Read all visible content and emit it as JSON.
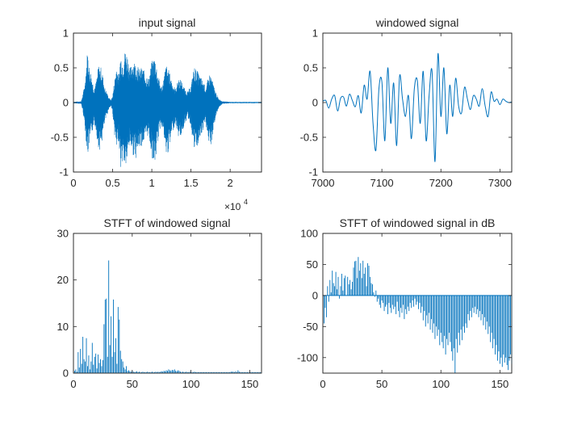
{
  "chart_data": [
    {
      "type": "line",
      "title": "input signal",
      "xlabel": "",
      "ylabel": "",
      "xlim": [
        0,
        24000
      ],
      "ylim": [
        -1,
        1
      ],
      "x_ticks": [
        0,
        5000,
        10000,
        15000,
        20000
      ],
      "x_tick_labels": [
        "0",
        "0.5",
        "1",
        "1.5",
        "2"
      ],
      "x_exponent_label": "×10",
      "x_exponent_power": "4",
      "y_ticks": [
        -1,
        -0.5,
        0,
        0.5,
        1
      ],
      "y_tick_labels": [
        "-1",
        "-0.5",
        "0",
        "0.5",
        "1"
      ],
      "color": "#0072BD",
      "envelope": {
        "x": [
          0,
          1000,
          1300,
          1500,
          1800,
          2000,
          2300,
          2600,
          2900,
          3200,
          3600,
          4000,
          4500,
          4800,
          5000,
          5200,
          5500,
          5800,
          6000,
          6300,
          6600,
          6900,
          7200,
          7600,
          8000,
          8400,
          8800,
          9200,
          9600,
          10000,
          10400,
          10800,
          11200,
          11500,
          11800,
          12200,
          12600,
          13000,
          13400,
          13800,
          14200,
          14600,
          15000,
          15400,
          15800,
          16200,
          16600,
          16900,
          17200,
          17400,
          17700,
          18000,
          18500,
          19000,
          20000,
          22000,
          24000
        ],
        "upper": [
          0.01,
          0.02,
          0.18,
          0.35,
          0.78,
          0.55,
          0.4,
          0.22,
          0.3,
          0.55,
          0.5,
          0.22,
          0.08,
          0.04,
          0.1,
          0.3,
          0.55,
          0.38,
          0.72,
          0.62,
          0.78,
          0.7,
          0.5,
          0.62,
          0.58,
          0.48,
          0.52,
          0.42,
          0.35,
          0.6,
          0.68,
          0.4,
          0.22,
          0.35,
          0.55,
          0.46,
          0.3,
          0.2,
          0.35,
          0.32,
          0.2,
          0.16,
          0.25,
          0.52,
          0.46,
          0.38,
          0.3,
          0.22,
          0.35,
          0.42,
          0.35,
          0.2,
          0.06,
          0.02,
          0.01,
          0.01,
          0.01
        ],
        "lower": [
          -0.01,
          -0.02,
          -0.2,
          -0.4,
          -0.8,
          -0.62,
          -0.5,
          -0.3,
          -0.4,
          -0.72,
          -0.6,
          -0.3,
          -0.1,
          -0.05,
          -0.15,
          -0.42,
          -0.72,
          -0.55,
          -0.95,
          -0.85,
          -0.96,
          -0.86,
          -0.6,
          -0.76,
          -0.8,
          -0.66,
          -0.62,
          -0.55,
          -0.46,
          -0.8,
          -0.9,
          -0.55,
          -0.3,
          -0.45,
          -0.8,
          -0.7,
          -0.44,
          -0.3,
          -0.5,
          -0.48,
          -0.3,
          -0.22,
          -0.35,
          -0.7,
          -0.66,
          -0.52,
          -0.4,
          -0.3,
          -0.6,
          -0.68,
          -0.55,
          -0.3,
          -0.08,
          -0.02,
          -0.01,
          -0.01,
          -0.01
        ]
      }
    },
    {
      "type": "line",
      "title": "windowed signal",
      "xlabel": "",
      "ylabel": "",
      "xlim": [
        7000,
        7320
      ],
      "ylim": [
        -1,
        1
      ],
      "x_ticks": [
        7000,
        7100,
        7200,
        7300
      ],
      "x_tick_labels": [
        "7000",
        "7100",
        "7200",
        "7300"
      ],
      "y_ticks": [
        -1,
        -0.5,
        0,
        0.5,
        1
      ],
      "y_tick_labels": [
        "-1",
        "-0.5",
        "0",
        "0.5",
        "1"
      ],
      "color": "#0072BD",
      "x": [
        7000,
        7005,
        7010,
        7015,
        7020,
        7025,
        7030,
        7035,
        7040,
        7045,
        7050,
        7055,
        7060,
        7065,
        7070,
        7075,
        7080,
        7085,
        7090,
        7095,
        7100,
        7105,
        7110,
        7115,
        7120,
        7125,
        7130,
        7135,
        7140,
        7145,
        7150,
        7155,
        7160,
        7165,
        7170,
        7175,
        7180,
        7185,
        7190,
        7195,
        7200,
        7205,
        7210,
        7215,
        7220,
        7225,
        7230,
        7235,
        7240,
        7245,
        7250,
        7255,
        7260,
        7265,
        7270,
        7275,
        7280,
        7285,
        7290,
        7295,
        7300,
        7305,
        7310,
        7315,
        7320
      ],
      "y": [
        0.02,
        0.03,
        -0.08,
        0.05,
        0.1,
        -0.12,
        0.06,
        0.08,
        -0.05,
        0.12,
        0.03,
        -0.06,
        0.1,
        -0.15,
        0.25,
        0.05,
        0.45,
        -0.3,
        -0.68,
        0.2,
        0.3,
        -0.55,
        0.5,
        -0.3,
        0.28,
        -0.62,
        0.38,
        0.05,
        -0.2,
        0.1,
        -0.52,
        0.2,
        0.32,
        -0.3,
        0.45,
        -0.55,
        0.1,
        0.45,
        -0.85,
        0.7,
        -0.2,
        0.5,
        -0.45,
        0.25,
        -0.2,
        0.35,
        -0.05,
        -0.15,
        0.22,
        0.05,
        -0.1,
        0.1,
        0.05,
        -0.05,
        0.2,
        -0.05,
        -0.2,
        0.15,
        0.02,
        0.05,
        -0.03,
        0.05,
        0.02,
        0.0,
        0.01
      ]
    },
    {
      "type": "bar",
      "title": "STFT of windowed signal",
      "xlabel": "",
      "ylabel": "",
      "xlim": [
        0,
        160
      ],
      "ylim": [
        0,
        30
      ],
      "x_ticks": [
        0,
        50,
        100,
        150
      ],
      "x_tick_labels": [
        "0",
        "50",
        "100",
        "150"
      ],
      "y_ticks": [
        0,
        10,
        20,
        30
      ],
      "y_tick_labels": [
        "0",
        "10",
        "20",
        "30"
      ],
      "color": "#0072BD",
      "values": [
        0.5,
        0.8,
        0.3,
        4.5,
        1.2,
        5.2,
        2.0,
        7.8,
        3.0,
        2.5,
        7.5,
        1.5,
        3.8,
        0.8,
        2.5,
        6.5,
        1.8,
        3.5,
        4.2,
        1.0,
        4.0,
        2.2,
        3.0,
        1.5,
        2.8,
        10.5,
        15.8,
        16.0,
        3.5,
        24.2,
        6.0,
        12.2,
        3.5,
        15.8,
        4.5,
        7.5,
        2.0,
        14.2,
        11.5,
        4.8,
        3.0,
        2.5,
        1.2,
        0.8,
        1.5,
        0.5,
        0.6,
        0.4,
        0.3,
        0.5,
        0.3,
        0.2,
        0.3,
        0.4,
        0.2,
        0.3,
        0.2,
        0.2,
        0.3,
        0.2,
        0.2,
        0.2,
        0.3,
        0.2,
        0.2,
        0.2,
        0.3,
        0.2,
        0.2,
        0.3,
        0.2,
        0.3,
        0.2,
        0.3,
        0.4,
        0.3,
        0.5,
        0.4,
        0.6,
        0.5,
        0.8,
        0.6,
        0.5,
        0.7,
        0.6,
        0.8,
        0.5,
        0.4,
        0.6,
        0.5,
        0.3,
        0.2,
        0.3,
        0.2,
        0.2,
        0.3,
        0.2,
        0.2,
        0.3,
        0.2,
        0.2,
        0.2,
        0.3,
        0.2,
        0.2,
        0.2,
        0.2,
        0.2,
        0.2,
        0.2,
        0.2,
        0.2,
        0.2,
        0.2,
        0.2,
        0.2,
        0.2,
        0.2,
        0.2,
        0.2,
        0.2,
        0.2,
        0.2,
        0.2,
        0.2,
        0.2,
        0.2,
        0.2,
        0.2,
        0.2,
        0.2,
        0.2,
        0.2,
        0.3,
        0.3,
        0.3,
        0.2,
        0.4,
        0.2,
        0.6,
        0.3,
        0.2,
        0.2,
        0.2,
        0.2,
        0.2,
        0.2,
        0.2,
        0.2,
        0.2,
        0.2,
        0.2,
        0.2,
        0.2,
        0.2,
        0.2,
        0.2,
        0.2,
        0.2,
        0.2
      ]
    },
    {
      "type": "bar",
      "title": "STFT of windowed signal in dB",
      "xlabel": "",
      "ylabel": "",
      "xlim": [
        0,
        160
      ],
      "ylim": [
        -125,
        100
      ],
      "x_ticks": [
        0,
        50,
        100,
        150
      ],
      "x_tick_labels": [
        "0",
        "50",
        "100",
        "150"
      ],
      "y_ticks": [
        -100,
        -50,
        0,
        50,
        100
      ],
      "y_tick_labels": [
        "-100",
        "-50",
        "0",
        "50",
        "100"
      ],
      "color": "#0072BD",
      "values": [
        -45,
        -20,
        -35,
        15,
        -10,
        25,
        5,
        40,
        20,
        15,
        38,
        10,
        30,
        -5,
        15,
        35,
        8,
        28,
        32,
        0,
        30,
        18,
        25,
        10,
        22,
        45,
        55,
        56,
        28,
        62,
        40,
        52,
        28,
        56,
        35,
        45,
        15,
        52,
        48,
        30,
        20,
        18,
        5,
        -2,
        8,
        -10,
        -5,
        -15,
        -20,
        -8,
        -12,
        -25,
        -18,
        -15,
        -30,
        -12,
        -20,
        -28,
        -15,
        -22,
        -18,
        -30,
        -10,
        -25,
        -35,
        -20,
        -28,
        -15,
        -38,
        -22,
        -30,
        -18,
        -25,
        -12,
        -20,
        -8,
        -18,
        -5,
        -15,
        -10,
        -22,
        -12,
        -28,
        -18,
        -40,
        -25,
        -50,
        -32,
        -45,
        -28,
        -55,
        -38,
        -60,
        -45,
        -70,
        -50,
        -65,
        -55,
        -80,
        -60,
        -75,
        -85,
        -65,
        -95,
        -70,
        -80,
        -60,
        -75,
        -90,
        -105,
        -85,
        -125,
        -70,
        -92,
        -60,
        -80,
        -55,
        -72,
        -50,
        -60,
        -45,
        -52,
        -30,
        -40,
        -25,
        -35,
        -20,
        -28,
        -18,
        -30,
        -22,
        -35,
        -25,
        -40,
        -30,
        -48,
        -35,
        -55,
        -42,
        -62,
        -50,
        -75,
        -60,
        -85,
        -70,
        -95,
        -80,
        -105,
        -90,
        -110,
        -100,
        -115,
        -95,
        -108,
        -100,
        -112,
        -120,
        -105,
        -95,
        -110
      ]
    }
  ]
}
